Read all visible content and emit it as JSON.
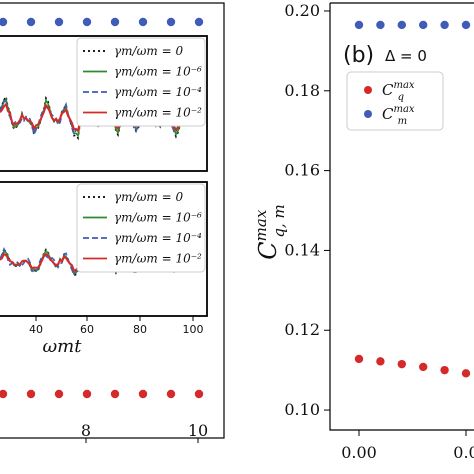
{
  "chart_data": [
    {
      "type": "scatter",
      "panel": "left-outer (cropped)",
      "x_ticks": [
        "8",
        "10"
      ],
      "series": [
        {
          "color": "#3e5cb8",
          "marker": "circle",
          "y_level": "top",
          "count_visible": 8
        },
        {
          "color": "#d42a2a",
          "marker": "circle",
          "y_level": "bottom",
          "count_visible": 8
        }
      ],
      "inset_top": {
        "type": "line",
        "legend": [
          {
            "label": "γm/ωm = 0",
            "style": "dotted",
            "color": "#000000"
          },
          {
            "label": "γm/ωm = 10⁻⁶",
            "style": "solid",
            "color": "#2f8a2f"
          },
          {
            "label": "γm/ωm = 10⁻⁴",
            "style": "dashed",
            "color": "#3e5cb8"
          },
          {
            "label": "γm/ωm = 10⁻²",
            "style": "solid",
            "color": "#d42a2a"
          }
        ]
      },
      "inset_bottom": {
        "type": "line",
        "xlabel": "ωmt",
        "x_ticks": [
          "40",
          "60",
          "80",
          "100"
        ],
        "legend": [
          {
            "label": "γm/ωm = 0",
            "style": "dotted",
            "color": "#000000"
          },
          {
            "label": "γm/ωm = 10⁻⁶",
            "style": "solid",
            "color": "#2f8a2f"
          },
          {
            "label": "γm/ωm = 10⁻⁴",
            "style": "dashed",
            "color": "#3e5cb8"
          },
          {
            "label": "γm/ωm = 10⁻²",
            "style": "solid",
            "color": "#d42a2a"
          }
        ]
      }
    },
    {
      "type": "scatter",
      "panel_label": "(b)",
      "annotation": "Δ = 0",
      "ylabel": "C^max_q,m",
      "ylim": [
        0.095,
        0.202
      ],
      "y_ticks": [
        "0.20",
        "0.18",
        "0.16",
        "0.14",
        "0.12",
        "0.10"
      ],
      "x_ticks": [
        "0.00",
        "0.0"
      ],
      "legend": [
        {
          "label": "C^max_q",
          "color": "#d42a2a"
        },
        {
          "label": "C^max_m",
          "color": "#3e5cb8"
        }
      ],
      "series": [
        {
          "name": "C^max_m",
          "color": "#3e5cb8",
          "x": [
            0.0,
            0.005,
            0.01,
            0.015,
            0.02,
            0.025
          ],
          "y": [
            0.1965,
            0.1965,
            0.1965,
            0.1965,
            0.1965,
            0.1965
          ]
        },
        {
          "name": "C^max_q",
          "color": "#d42a2a",
          "x": [
            0.0,
            0.005,
            0.01,
            0.015,
            0.02,
            0.025
          ],
          "y": [
            0.1128,
            0.1122,
            0.1115,
            0.1108,
            0.11,
            0.1092
          ]
        }
      ]
    }
  ],
  "text": {
    "panel_b": "(b)",
    "delta": "Δ = 0"
  }
}
